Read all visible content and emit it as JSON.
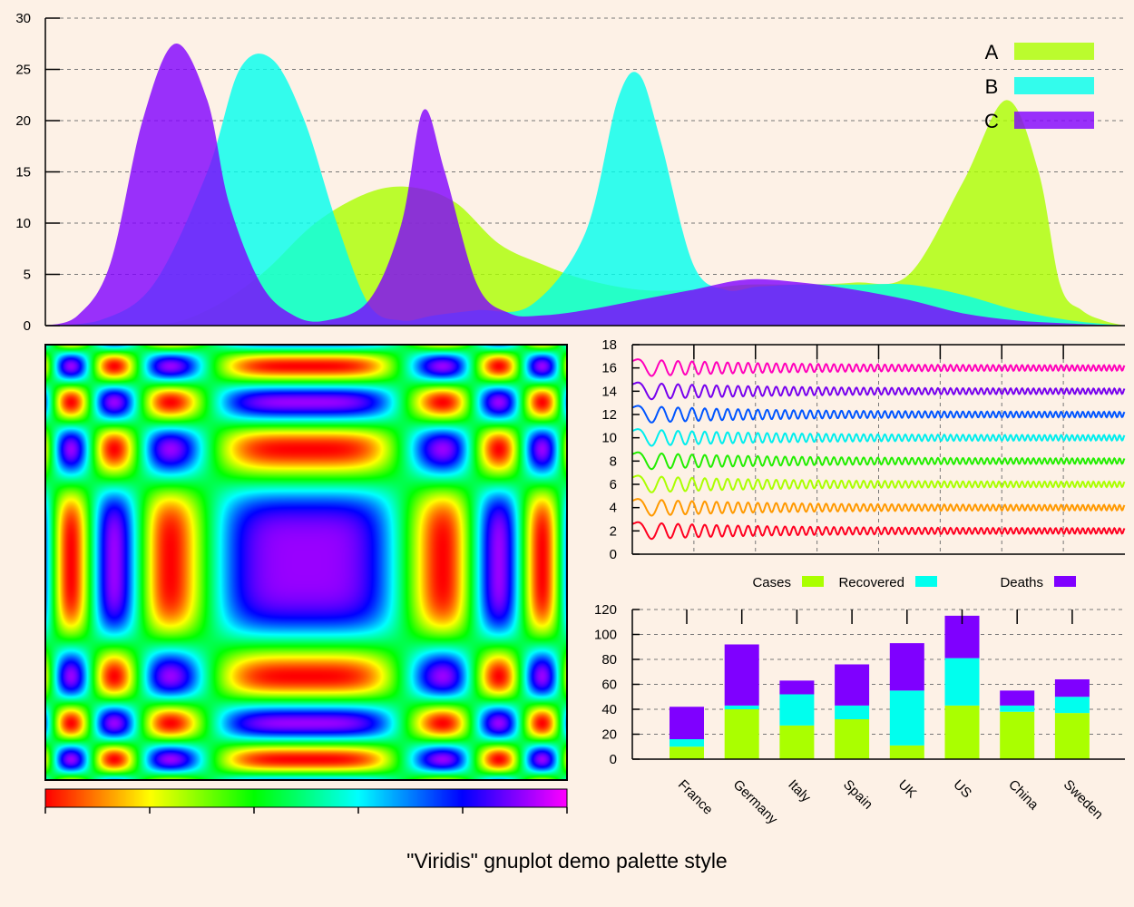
{
  "title": "\"Viridis\" gnuplot demo palette style",
  "colors": {
    "A": "#aaff00",
    "B": "#00ffee",
    "C": "#7f00ff",
    "background": "#fdf1e6"
  },
  "chart_data": [
    {
      "type": "area",
      "title": "",
      "ylim": [
        0,
        30
      ],
      "yticks": [
        "0",
        "5",
        "10",
        "15",
        "20",
        "25",
        "30"
      ],
      "xlim": [
        0,
        100
      ],
      "grid": true,
      "legend_position": "top-right",
      "series": [
        {
          "name": "A",
          "x": [
            0,
            10,
            15,
            20,
            25,
            30,
            34,
            38,
            42,
            46,
            50,
            55,
            60,
            65,
            70,
            75,
            80,
            85,
            89,
            92,
            94,
            96,
            98,
            100
          ],
          "y": [
            0,
            0,
            1.5,
            5,
            10,
            13,
            13.5,
            12,
            8,
            6,
            4.5,
            3.5,
            3.5,
            4,
            4,
            4.2,
            5,
            14,
            22,
            15,
            4,
            1.5,
            0.5,
            0
          ]
        },
        {
          "name": "B",
          "x": [
            0,
            5,
            10,
            15,
            18,
            21,
            24,
            27,
            30,
            33,
            36,
            40,
            45,
            50,
            53,
            55,
            57,
            60,
            63,
            66,
            70,
            75,
            80,
            85,
            90,
            95,
            100
          ],
          "y": [
            0,
            0.5,
            4,
            15,
            25,
            26,
            20,
            10,
            2,
            0.5,
            1,
            1.5,
            2,
            9,
            22,
            24.5,
            18,
            6,
            3.5,
            3.8,
            4,
            4,
            4,
            3,
            1.5,
            0.5,
            0
          ]
        },
        {
          "name": "C",
          "x": [
            0,
            3,
            6,
            9,
            12,
            15,
            17,
            20,
            23,
            26,
            30,
            33,
            35,
            37,
            40,
            43,
            46,
            50,
            55,
            60,
            65,
            70,
            75,
            80,
            85,
            90,
            95,
            100
          ],
          "y": [
            0,
            1,
            6,
            20,
            27.5,
            22,
            12,
            4,
            1,
            0.5,
            2.5,
            10,
            21,
            15,
            4,
            1.2,
            1,
            1.5,
            2.5,
            3.5,
            4.5,
            4.2,
            3.5,
            2.5,
            1.2,
            0.5,
            0.2,
            0
          ]
        }
      ]
    },
    {
      "type": "heatmap",
      "title": "",
      "palette": [
        "#ff0000",
        "#ffff00",
        "#00ff00",
        "#00ffff",
        "#0000ff",
        "#ff00ff"
      ],
      "colorbar_ticks": 6
    },
    {
      "type": "line",
      "title": "",
      "ylim": [
        0,
        18
      ],
      "yticks": [
        "0",
        "2",
        "4",
        "6",
        "8",
        "10",
        "12",
        "14",
        "16",
        "18"
      ],
      "xlim": [
        0,
        100
      ],
      "series": [
        {
          "offset": 2,
          "color": "#ff0020"
        },
        {
          "offset": 4,
          "color": "#ff9900"
        },
        {
          "offset": 6,
          "color": "#aaff00"
        },
        {
          "offset": 8,
          "color": "#22ee00"
        },
        {
          "offset": 10,
          "color": "#00eeee"
        },
        {
          "offset": 12,
          "color": "#0055ff"
        },
        {
          "offset": 14,
          "color": "#7700ee"
        },
        {
          "offset": 16,
          "color": "#ff00bb"
        }
      ]
    },
    {
      "type": "bar",
      "title": "",
      "stacked": true,
      "categories": [
        "France",
        "Germany",
        "Italy",
        "Spain",
        "UK",
        "US",
        "China",
        "Sweden"
      ],
      "ylim": [
        0,
        120
      ],
      "yticks": [
        "0",
        "20",
        "40",
        "60",
        "80",
        "100",
        "120"
      ],
      "legend_position": "top",
      "series": [
        {
          "name": "Cases",
          "values": [
            10,
            40,
            27,
            32,
            11,
            43,
            38,
            37
          ]
        },
        {
          "name": "Recovered",
          "values": [
            6,
            3,
            25,
            11,
            44,
            38,
            5,
            13
          ]
        },
        {
          "name": "Deaths",
          "values": [
            26,
            49,
            11,
            33,
            38,
            34,
            12,
            14
          ]
        }
      ]
    }
  ]
}
